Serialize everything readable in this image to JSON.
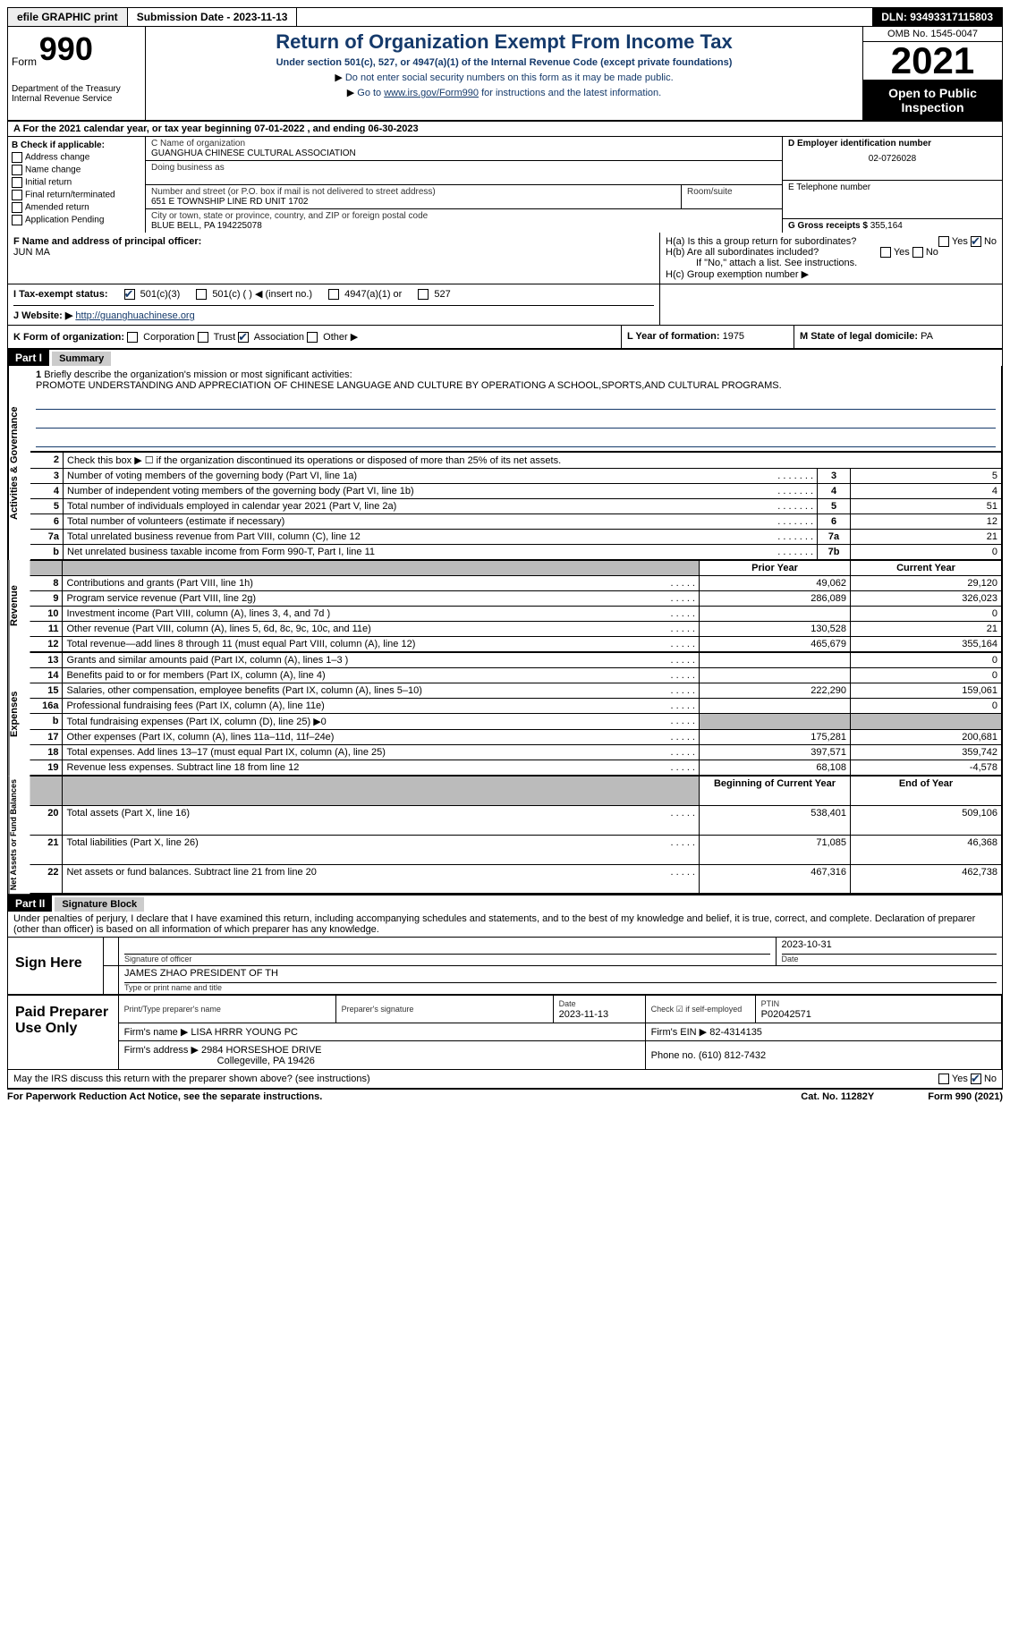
{
  "topbar": {
    "efile_btn": "efile GRAPHIC print",
    "submission_date": "Submission Date - 2023-11-13",
    "dln": "DLN: 93493317115803"
  },
  "header": {
    "form_word": "Form",
    "form_num": "990",
    "dept1": "Department of the Treasury",
    "dept2": "Internal Revenue Service",
    "title": "Return of Organization Exempt From Income Tax",
    "subtitle": "Under section 501(c), 527, or 4947(a)(1) of the Internal Revenue Code (except private foundations)",
    "note1": "Do not enter social security numbers on this form as it may be made public.",
    "note2_pre": "Go to ",
    "note2_link": "www.irs.gov/Form990",
    "note2_post": " for instructions and the latest information.",
    "omb": "OMB No. 1545-0047",
    "year": "2021",
    "open_public": "Open to Public Inspection"
  },
  "row_a": "A For the 2021 calendar year, or tax year beginning 07-01-2022   , and ending 06-30-2023",
  "section_b": {
    "b_label": "B Check if applicable:",
    "opts": [
      "Address change",
      "Name change",
      "Initial return",
      "Final return/terminated",
      "Amended return",
      "Application Pending"
    ],
    "c_name_label": "C Name of organization",
    "c_name": "GUANGHUA CHINESE CULTURAL ASSOCIATION",
    "dba_label": "Doing business as",
    "addr_label": "Number and street (or P.O. box if mail is not delivered to street address)",
    "room_label": "Room/suite",
    "addr": "651 E TOWNSHIP LINE RD UNIT 1702",
    "city_label": "City or town, state or province, country, and ZIP or foreign postal code",
    "city": "BLUE BELL, PA  194225078",
    "d_label": "D Employer identification number",
    "d_val": "02-0726028",
    "e_label": "E Telephone number",
    "g_label": "G Gross receipts $",
    "g_val": "355,164"
  },
  "fgh": {
    "f_label": "F Name and address of principal officer:",
    "f_name": "JUN MA",
    "ha": "H(a)  Is this a group return for subordinates?",
    "hb": "H(b)  Are all subordinates included?",
    "hb_note": "If \"No,\" attach a list. See instructions.",
    "hc": "H(c)  Group exemption number ▶",
    "yes": "Yes",
    "no": "No"
  },
  "tax_status": {
    "label": "I   Tax-exempt status:",
    "opt1": "501(c)(3)",
    "opt2": "501(c) (  ) ◀ (insert no.)",
    "opt3": "4947(a)(1) or",
    "opt4": "527"
  },
  "website": {
    "label": "J   Website: ▶",
    "url": "http://guanghuachinese.org"
  },
  "row_k": {
    "k_label": "K Form of organization:",
    "k_opts": [
      "Corporation",
      "Trust",
      "Association",
      "Other ▶"
    ],
    "l_label": "L Year of formation:",
    "l_val": "1975",
    "m_label": "M State of legal domicile:",
    "m_val": "PA"
  },
  "part1": {
    "bar": "Part I",
    "title": "Summary",
    "q1_label": "1",
    "q1": "Briefly describe the organization's mission or most significant activities:",
    "q1_text": "PROMOTE UNDERSTANDING AND APPRECIATION OF CHINESE LANGUAGE AND CULTURE BY OPERATIONG A SCHOOL,SPORTS,AND CULTURAL PROGRAMS.",
    "q2": "Check this box ▶ ☐  if the organization discontinued its operations or disposed of more than 25% of its net assets.",
    "vtab_act": "Activities & Governance",
    "vtab_rev": "Revenue",
    "vtab_exp": "Expenses",
    "vtab_net": "Net Assets or Fund Balances",
    "rows_gov": [
      {
        "n": "3",
        "t": "Number of voting members of the governing body (Part VI, line 1a)",
        "ref": "3",
        "v": "5"
      },
      {
        "n": "4",
        "t": "Number of independent voting members of the governing body (Part VI, line 1b)",
        "ref": "4",
        "v": "4"
      },
      {
        "n": "5",
        "t": "Total number of individuals employed in calendar year 2021 (Part V, line 2a)",
        "ref": "5",
        "v": "51"
      },
      {
        "n": "6",
        "t": "Total number of volunteers (estimate if necessary)",
        "ref": "6",
        "v": "12"
      },
      {
        "n": "7a",
        "t": "Total unrelated business revenue from Part VIII, column (C), line 12",
        "ref": "7a",
        "v": "21"
      },
      {
        "n": "b",
        "t": "Net unrelated business taxable income from Form 990-T, Part I, line 11",
        "ref": "7b",
        "v": "0"
      }
    ],
    "hdr_prior": "Prior Year",
    "hdr_curr": "Current Year",
    "rows_rev": [
      {
        "n": "8",
        "t": "Contributions and grants (Part VIII, line 1h)",
        "p": "49,062",
        "c": "29,120"
      },
      {
        "n": "9",
        "t": "Program service revenue (Part VIII, line 2g)",
        "p": "286,089",
        "c": "326,023"
      },
      {
        "n": "10",
        "t": "Investment income (Part VIII, column (A), lines 3, 4, and 7d )",
        "p": "",
        "c": "0"
      },
      {
        "n": "11",
        "t": "Other revenue (Part VIII, column (A), lines 5, 6d, 8c, 9c, 10c, and 11e)",
        "p": "130,528",
        "c": "21"
      },
      {
        "n": "12",
        "t": "Total revenue—add lines 8 through 11 (must equal Part VIII, column (A), line 12)",
        "p": "465,679",
        "c": "355,164"
      }
    ],
    "rows_exp": [
      {
        "n": "13",
        "t": "Grants and similar amounts paid (Part IX, column (A), lines 1–3 )",
        "p": "",
        "c": "0"
      },
      {
        "n": "14",
        "t": "Benefits paid to or for members (Part IX, column (A), line 4)",
        "p": "",
        "c": "0"
      },
      {
        "n": "15",
        "t": "Salaries, other compensation, employee benefits (Part IX, column (A), lines 5–10)",
        "p": "222,290",
        "c": "159,061"
      },
      {
        "n": "16a",
        "t": "Professional fundraising fees (Part IX, column (A), line 11e)",
        "p": "",
        "c": "0"
      },
      {
        "n": "b",
        "t": "Total fundraising expenses (Part IX, column (D), line 25) ▶0",
        "p": "SHADE",
        "c": "SHADE"
      },
      {
        "n": "17",
        "t": "Other expenses (Part IX, column (A), lines 11a–11d, 11f–24e)",
        "p": "175,281",
        "c": "200,681"
      },
      {
        "n": "18",
        "t": "Total expenses. Add lines 13–17 (must equal Part IX, column (A), line 25)",
        "p": "397,571",
        "c": "359,742"
      },
      {
        "n": "19",
        "t": "Revenue less expenses. Subtract line 18 from line 12",
        "p": "68,108",
        "c": "-4,578"
      }
    ],
    "hdr_beg": "Beginning of Current Year",
    "hdr_end": "End of Year",
    "rows_net": [
      {
        "n": "20",
        "t": "Total assets (Part X, line 16)",
        "p": "538,401",
        "c": "509,106"
      },
      {
        "n": "21",
        "t": "Total liabilities (Part X, line 26)",
        "p": "71,085",
        "c": "46,368"
      },
      {
        "n": "22",
        "t": "Net assets or fund balances. Subtract line 21 from line 20",
        "p": "467,316",
        "c": "462,738"
      }
    ]
  },
  "part2": {
    "bar": "Part II",
    "title": "Signature Block",
    "decl": "Under penalties of perjury, I declare that I have examined this return, including accompanying schedules and statements, and to the best of my knowledge and belief, it is true, correct, and complete. Declaration of preparer (other than officer) is based on all information of which preparer has any knowledge.",
    "sign_here": "Sign Here",
    "sig_officer": "Signature of officer",
    "sig_date": "Date",
    "sig_date_val": "2023-10-31",
    "sig_name": "JAMES ZHAO  PRESIDENT OF TH",
    "sig_name_label": "Type or print name and title",
    "paid": "Paid Preparer Use Only",
    "p_name_label": "Print/Type preparer's name",
    "p_sig_label": "Preparer's signature",
    "p_date_label": "Date",
    "p_date": "2023-11-13",
    "p_check": "Check ☑ if self-employed",
    "p_ptin_label": "PTIN",
    "p_ptin": "P02042571",
    "firm_name_label": "Firm's name    ▶",
    "firm_name": "LISA HRRR YOUNG PC",
    "firm_ein_label": "Firm's EIN ▶",
    "firm_ein": "82-4314135",
    "firm_addr_label": "Firm's address ▶",
    "firm_addr1": "2984 HORSESHOE DRIVE",
    "firm_addr2": "Collegeville, PA  19426",
    "phone_label": "Phone no.",
    "phone": "(610) 812-7432"
  },
  "footer": {
    "may_irs": "May the IRS discuss this return with the preparer shown above? (see instructions)",
    "yes": "Yes",
    "no": "No",
    "paperwork": "For Paperwork Reduction Act Notice, see the separate instructions.",
    "cat": "Cat. No. 11282Y",
    "form": "Form 990 (2021)"
  }
}
